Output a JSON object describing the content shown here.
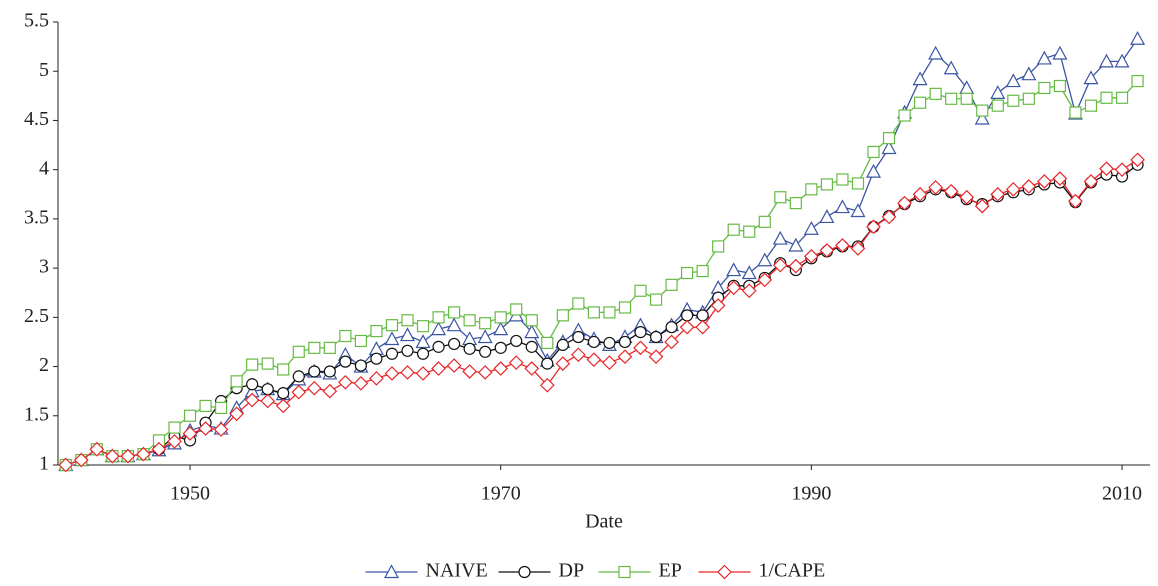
{
  "chart_data": {
    "type": "line",
    "xlabel": "Date",
    "x": [
      1942,
      1943,
      1944,
      1945,
      1946,
      1947,
      1948,
      1949,
      1950,
      1951,
      1952,
      1953,
      1954,
      1955,
      1956,
      1957,
      1958,
      1959,
      1960,
      1961,
      1962,
      1963,
      1964,
      1965,
      1966,
      1967,
      1968,
      1969,
      1970,
      1971,
      1972,
      1973,
      1974,
      1975,
      1976,
      1977,
      1978,
      1979,
      1980,
      1981,
      1982,
      1983,
      1984,
      1985,
      1986,
      1987,
      1988,
      1989,
      1990,
      1991,
      1992,
      1993,
      1994,
      1995,
      1996,
      1997,
      1998,
      1999,
      2000,
      2001,
      2002,
      2003,
      2004,
      2005,
      2006,
      2007,
      2008,
      2009,
      2010,
      2011
    ],
    "xlim": [
      1941.5,
      2011.8
    ],
    "xticks": [
      1950,
      1970,
      1990,
      2010
    ],
    "ylim": [
      1,
      5.5
    ],
    "yticks": [
      1,
      1.5,
      2,
      2.5,
      3,
      3.5,
      4,
      4.5,
      5,
      5.5
    ],
    "series": [
      {
        "name": "NAIVE",
        "color": "#3a55a4",
        "marker": "triangle",
        "values": [
          1.0,
          1.05,
          1.16,
          1.09,
          1.09,
          1.11,
          1.15,
          1.22,
          1.35,
          1.4,
          1.37,
          1.58,
          1.75,
          1.77,
          1.72,
          1.87,
          1.95,
          1.93,
          2.12,
          2.0,
          2.18,
          2.28,
          2.32,
          2.25,
          2.38,
          2.42,
          2.28,
          2.3,
          2.38,
          2.52,
          2.35,
          2.06,
          2.25,
          2.37,
          2.28,
          2.22,
          2.3,
          2.42,
          2.3,
          2.42,
          2.58,
          2.55,
          2.8,
          2.98,
          2.95,
          3.08,
          3.3,
          3.23,
          3.4,
          3.52,
          3.62,
          3.58,
          3.98,
          4.22,
          4.58,
          4.92,
          5.18,
          5.03,
          4.83,
          4.52,
          4.78,
          4.9,
          4.97,
          5.13,
          5.18,
          4.57,
          4.93,
          5.1,
          5.1,
          5.33
        ]
      },
      {
        "name": "DP",
        "color": "#111111",
        "marker": "circle",
        "values": [
          1.0,
          1.05,
          1.16,
          1.09,
          1.09,
          1.11,
          1.16,
          1.29,
          1.25,
          1.43,
          1.65,
          1.78,
          1.82,
          1.77,
          1.73,
          1.9,
          1.95,
          1.95,
          2.05,
          2.01,
          2.08,
          2.13,
          2.16,
          2.13,
          2.2,
          2.23,
          2.18,
          2.15,
          2.19,
          2.26,
          2.2,
          2.03,
          2.22,
          2.3,
          2.25,
          2.24,
          2.25,
          2.35,
          2.3,
          2.4,
          2.52,
          2.52,
          2.7,
          2.82,
          2.82,
          2.9,
          3.05,
          2.98,
          3.1,
          3.17,
          3.22,
          3.22,
          3.42,
          3.53,
          3.65,
          3.73,
          3.8,
          3.77,
          3.7,
          3.65,
          3.73,
          3.77,
          3.8,
          3.85,
          3.87,
          3.67,
          3.87,
          3.95,
          3.93,
          4.05
        ]
      },
      {
        "name": "EP",
        "color": "#66bb44",
        "marker": "square",
        "values": [
          1.0,
          1.05,
          1.16,
          1.09,
          1.09,
          1.11,
          1.25,
          1.38,
          1.5,
          1.6,
          1.58,
          1.85,
          2.02,
          2.03,
          1.97,
          2.15,
          2.19,
          2.19,
          2.31,
          2.26,
          2.36,
          2.42,
          2.47,
          2.41,
          2.5,
          2.55,
          2.47,
          2.44,
          2.5,
          2.58,
          2.47,
          2.24,
          2.52,
          2.64,
          2.55,
          2.55,
          2.6,
          2.77,
          2.68,
          2.83,
          2.95,
          2.97,
          3.22,
          3.39,
          3.37,
          3.47,
          3.72,
          3.66,
          3.8,
          3.85,
          3.9,
          3.86,
          4.18,
          4.32,
          4.55,
          4.68,
          4.77,
          4.72,
          4.72,
          4.6,
          4.65,
          4.7,
          4.72,
          4.83,
          4.85,
          4.58,
          4.65,
          4.73,
          4.73,
          4.9
        ]
      },
      {
        "name": "1/CAPE",
        "color": "#e8262a",
        "marker": "diamond",
        "values": [
          1.0,
          1.05,
          1.16,
          1.09,
          1.09,
          1.11,
          1.16,
          1.24,
          1.32,
          1.37,
          1.36,
          1.52,
          1.66,
          1.65,
          1.6,
          1.74,
          1.78,
          1.75,
          1.84,
          1.83,
          1.88,
          1.93,
          1.94,
          1.93,
          1.98,
          2.01,
          1.95,
          1.94,
          1.98,
          2.04,
          1.98,
          1.81,
          2.03,
          2.12,
          2.07,
          2.04,
          2.1,
          2.19,
          2.1,
          2.25,
          2.4,
          2.4,
          2.62,
          2.8,
          2.77,
          2.88,
          3.03,
          3.02,
          3.12,
          3.18,
          3.23,
          3.2,
          3.42,
          3.52,
          3.66,
          3.75,
          3.82,
          3.78,
          3.72,
          3.63,
          3.75,
          3.8,
          3.83,
          3.88,
          3.91,
          3.68,
          3.88,
          4.01,
          4.0,
          4.1
        ]
      }
    ]
  }
}
